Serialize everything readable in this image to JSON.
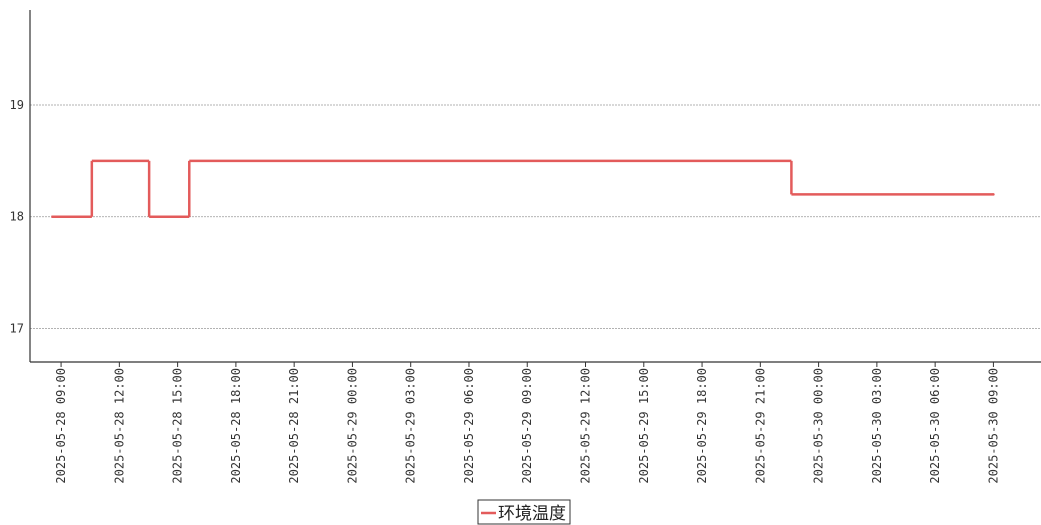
{
  "chart_data": {
    "type": "line",
    "step": true,
    "x": [
      "2025-05-28 08:30",
      "2025-05-28 10:35",
      "2025-05-28 13:32",
      "2025-05-28 15:36",
      "2025-05-29 22:36",
      "2025-05-30 09:00"
    ],
    "series": [
      {
        "name": "环境温度",
        "color": "#e35b5b",
        "values": [
          18,
          18.5,
          18,
          18.5,
          18.2,
          18.2
        ]
      }
    ],
    "xlim": [
      "2025-05-28 07:24",
      "2025-05-30 11:27"
    ],
    "xticks": [
      "2025-05-28 09:00",
      "2025-05-28 12:00",
      "2025-05-28 15:00",
      "2025-05-28 18:00",
      "2025-05-28 21:00",
      "2025-05-29 00:00",
      "2025-05-29 03:00",
      "2025-05-29 06:00",
      "2025-05-29 09:00",
      "2025-05-29 12:00",
      "2025-05-29 15:00",
      "2025-05-29 18:00",
      "2025-05-29 21:00",
      "2025-05-30 00:00",
      "2025-05-30 03:00",
      "2025-05-30 06:00",
      "2025-05-30 09:00"
    ],
    "ylim": [
      16.7,
      19.85
    ],
    "yticks": [
      17,
      18,
      19
    ],
    "grid": true,
    "legend": "bottom"
  }
}
